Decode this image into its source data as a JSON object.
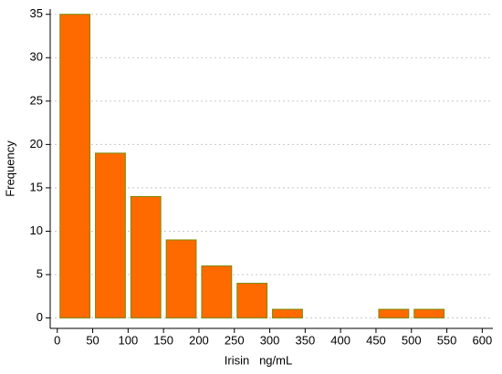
{
  "chart_data": {
    "type": "histogram",
    "xlabel": "Irisin   ng/mL",
    "ylabel": "Frequency",
    "bins": [
      0,
      50,
      100,
      150,
      200,
      250,
      300,
      350,
      400,
      450,
      500,
      550
    ],
    "values": [
      35,
      19,
      14,
      9,
      6,
      4,
      1,
      0,
      0,
      1,
      1
    ],
    "color": "#ff6a00",
    "edgecolor": "#7a8a00",
    "xlim": [
      -10,
      615
    ],
    "ylim": [
      -1.2,
      35.6
    ],
    "xticks": [
      0,
      50,
      100,
      150,
      200,
      250,
      300,
      350,
      400,
      450,
      500,
      550,
      600
    ],
    "yticks": [
      0,
      5,
      10,
      15,
      20,
      25,
      30,
      35
    ],
    "grid": true
  }
}
